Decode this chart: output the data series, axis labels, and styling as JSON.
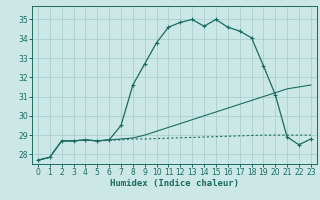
{
  "xlabel": "Humidex (Indice chaleur)",
  "bg_color": "#cce8e6",
  "grid_color": "#aacfcc",
  "line_color": "#1a6b60",
  "xlim": [
    -0.5,
    23.5
  ],
  "ylim": [
    27.5,
    35.7
  ],
  "xticks": [
    0,
    1,
    2,
    3,
    4,
    5,
    6,
    7,
    8,
    9,
    10,
    11,
    12,
    13,
    14,
    15,
    16,
    17,
    18,
    19,
    20,
    21,
    22,
    23
  ],
  "yticks": [
    28,
    29,
    30,
    31,
    32,
    33,
    34,
    35
  ],
  "curve1_x": [
    0,
    1,
    2,
    3,
    4,
    5,
    6,
    7,
    8,
    9,
    10,
    11,
    12,
    13,
    14,
    15,
    16,
    17,
    18,
    19,
    20,
    21,
    22,
    23
  ],
  "curve1_y": [
    27.7,
    27.85,
    28.7,
    28.7,
    28.75,
    28.7,
    28.75,
    29.5,
    31.6,
    32.7,
    33.8,
    34.6,
    34.85,
    35.0,
    34.65,
    35.0,
    34.6,
    34.4,
    34.05,
    32.6,
    31.1,
    28.9,
    28.5,
    28.8
  ],
  "curve2_x": [
    0,
    1,
    2,
    3,
    4,
    5,
    6,
    7,
    8,
    9,
    10,
    11,
    12,
    13,
    14,
    15,
    16,
    17,
    18,
    19,
    20,
    21,
    22,
    23
  ],
  "curve2_y": [
    27.7,
    27.85,
    28.7,
    28.7,
    28.75,
    28.7,
    28.75,
    28.8,
    28.85,
    29.0,
    29.2,
    29.4,
    29.6,
    29.8,
    30.0,
    30.2,
    30.4,
    30.6,
    30.8,
    31.0,
    31.2,
    31.4,
    31.5,
    31.6
  ],
  "curve3_x": [
    0,
    1,
    2,
    3,
    4,
    5,
    6,
    7,
    8,
    9,
    10,
    11,
    12,
    13,
    14,
    15,
    16,
    17,
    18,
    19,
    20,
    21,
    22,
    23
  ],
  "curve3_y": [
    27.7,
    27.85,
    28.7,
    28.7,
    28.75,
    28.7,
    28.75,
    28.75,
    28.8,
    28.8,
    28.82,
    28.84,
    28.86,
    28.88,
    28.9,
    28.92,
    28.94,
    28.96,
    28.98,
    29.0,
    29.0,
    29.0,
    29.0,
    29.0
  ]
}
